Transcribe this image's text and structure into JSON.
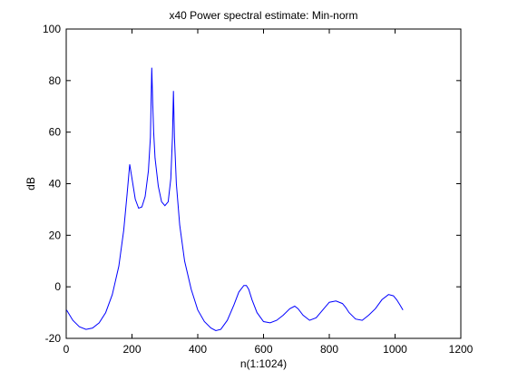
{
  "chart_data": {
    "type": "line",
    "title": "x40 Power spectral estimate: Min-norm",
    "xlabel": "n(1:1024)",
    "ylabel": "dB",
    "xlim": [
      0,
      1200
    ],
    "ylim": [
      -20,
      100
    ],
    "xticks": [
      0,
      200,
      400,
      600,
      800,
      1000,
      1200
    ],
    "yticks": [
      -20,
      0,
      20,
      40,
      60,
      80,
      100
    ],
    "grid": false,
    "line_color": "#0000ff",
    "series": [
      {
        "x": [
          1,
          20,
          40,
          60,
          80,
          100,
          120,
          140,
          160,
          175,
          185,
          193,
          200,
          210,
          220,
          230,
          240,
          250,
          256,
          260,
          263,
          266,
          270,
          280,
          290,
          300,
          310,
          318,
          323,
          326,
          329,
          335,
          345,
          360,
          380,
          400,
          420,
          440,
          455,
          470,
          490,
          510,
          525,
          540,
          548,
          555,
          565,
          580,
          600,
          620,
          640,
          660,
          680,
          695,
          705,
          720,
          740,
          760,
          780,
          800,
          820,
          840,
          850,
          860,
          880,
          900,
          920,
          940,
          960,
          980,
          995,
          1005,
          1015,
          1024
        ],
        "y": [
          -9,
          -13,
          -15.5,
          -16.5,
          -16,
          -14,
          -10,
          -3,
          8,
          22,
          36,
          47.5,
          42,
          34,
          30.5,
          31,
          35,
          45,
          58,
          85,
          72,
          60,
          50,
          39,
          33,
          31.5,
          33,
          42,
          58,
          76,
          58,
          40,
          24,
          10,
          -1,
          -9,
          -13.5,
          -16,
          -17,
          -16.5,
          -13,
          -7,
          -2,
          0.5,
          0.5,
          -1,
          -5,
          -10,
          -13.5,
          -14,
          -13,
          -11,
          -8.5,
          -7.5,
          -8.5,
          -11,
          -13,
          -12,
          -9,
          -6,
          -5.5,
          -6.5,
          -8,
          -10,
          -12.5,
          -13,
          -11,
          -8.5,
          -5,
          -3,
          -3.5,
          -5,
          -7,
          -9
        ]
      }
    ]
  }
}
